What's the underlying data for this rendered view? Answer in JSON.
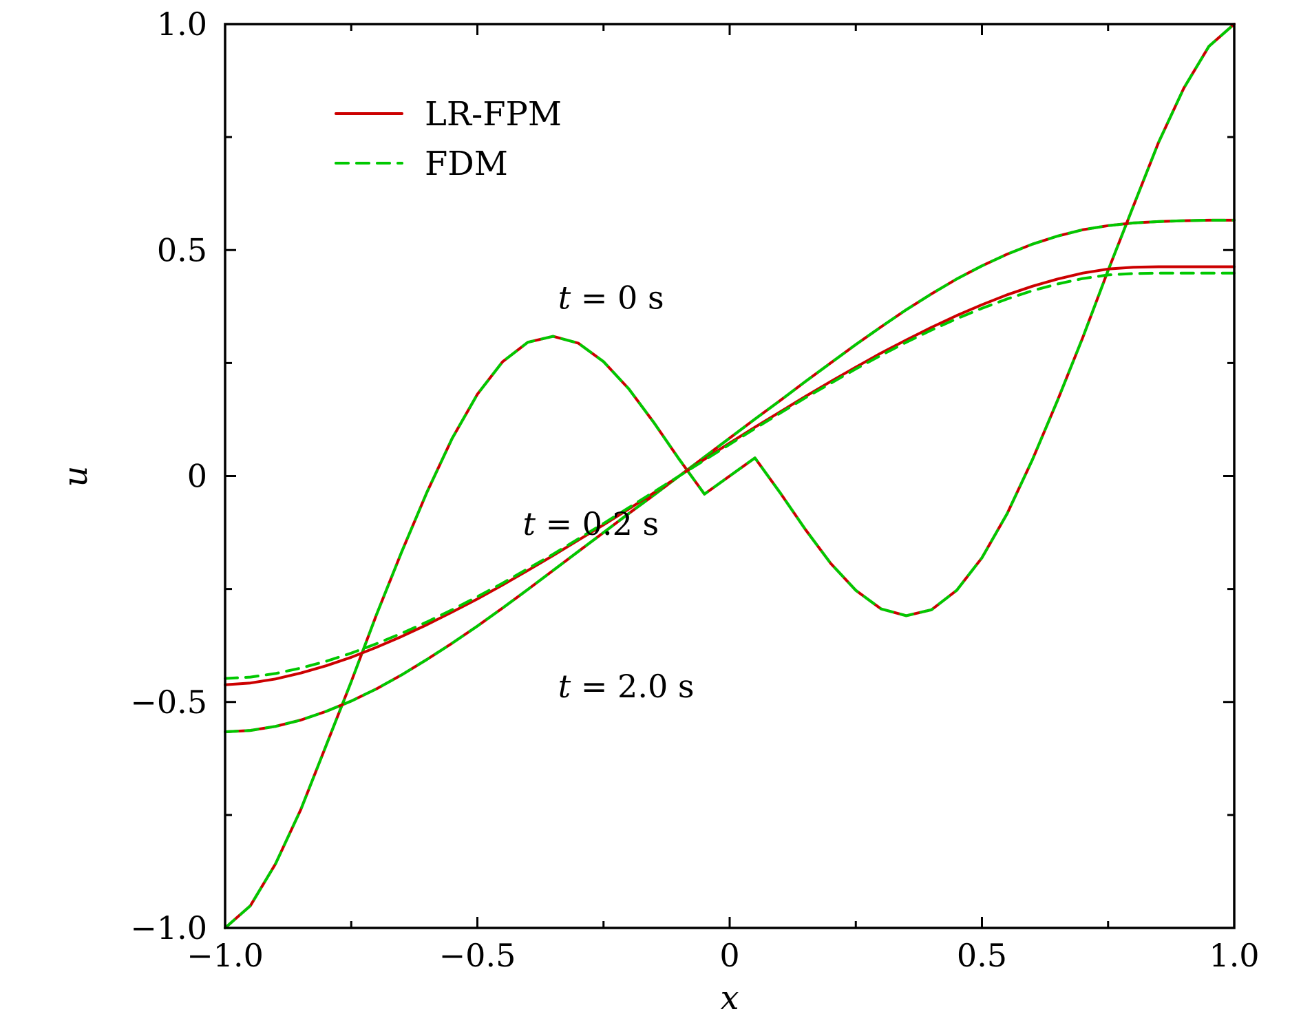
{
  "chart_data": {
    "type": "line",
    "xlabel": "x",
    "ylabel": "u",
    "xlim": [
      -1.0,
      1.0
    ],
    "ylim": [
      -1.0,
      1.0
    ],
    "x_ticks": [
      {
        "value": -1.0,
        "label": "−1.0"
      },
      {
        "value": -0.5,
        "label": "−0.5"
      },
      {
        "value": 0,
        "label": "0"
      },
      {
        "value": 0.5,
        "label": "0.5"
      },
      {
        "value": 1.0,
        "label": "1.0"
      }
    ],
    "x_minor_ticks": [
      -0.75,
      -0.25,
      0.25,
      0.75
    ],
    "y_ticks": [
      {
        "value": -1.0,
        "label": "−1.0"
      },
      {
        "value": -0.5,
        "label": "−0.5"
      },
      {
        "value": 0,
        "label": "0"
      },
      {
        "value": 0.5,
        "label": "0.5"
      },
      {
        "value": 1.0,
        "label": "1.0"
      }
    ],
    "y_minor_ticks": [
      -0.75,
      -0.25,
      0.25,
      0.75
    ],
    "grid": false,
    "legend_position": "top-left",
    "legend": [
      {
        "name": "LR-FPM",
        "color": "#cc0000",
        "dash": "solid"
      },
      {
        "name": "FDM",
        "color": "#00c800",
        "dash": "dashed"
      }
    ],
    "annotations": [
      {
        "text": "t = 0 s",
        "x": -0.34,
        "y": 0.37
      },
      {
        "text": "t = 0.2 s",
        "x": -0.41,
        "y": -0.13
      },
      {
        "text": "t = 2.0 s",
        "x": -0.34,
        "y": -0.49
      }
    ],
    "x": [
      -1.0,
      -0.95,
      -0.9,
      -0.85,
      -0.8,
      -0.75,
      -0.7,
      -0.65,
      -0.6,
      -0.55,
      -0.5,
      -0.45,
      -0.4,
      -0.35,
      -0.3,
      -0.25,
      -0.2,
      -0.15,
      -0.1,
      -0.05,
      0.0,
      0.05,
      0.1,
      0.15,
      0.2,
      0.25,
      0.3,
      0.35,
      0.4,
      0.45,
      0.5,
      0.55,
      0.6,
      0.65,
      0.7,
      0.75,
      0.8,
      0.85,
      0.9,
      0.95,
      1.0
    ],
    "series": [
      {
        "group": "t = 0 s",
        "method": "LR-FPM",
        "color": "#cc0000",
        "dash": "solid",
        "values": [
          -1.0,
          -0.951,
          -0.858,
          -0.738,
          -0.597,
          -0.455,
          -0.307,
          -0.168,
          -0.036,
          0.083,
          0.181,
          0.253,
          0.296,
          0.309,
          0.294,
          0.253,
          0.193,
          0.118,
          0.037,
          -0.04,
          0.0,
          0.04,
          -0.037,
          -0.118,
          -0.193,
          -0.253,
          -0.294,
          -0.309,
          -0.296,
          -0.253,
          -0.181,
          -0.083,
          0.036,
          0.168,
          0.307,
          0.455,
          0.597,
          0.738,
          0.858,
          0.951,
          1.0
        ]
      },
      {
        "group": "t = 0 s",
        "method": "FDM",
        "color": "#00c800",
        "dash": "dashed",
        "values": [
          -1.0,
          -0.951,
          -0.858,
          -0.738,
          -0.597,
          -0.455,
          -0.307,
          -0.168,
          -0.036,
          0.083,
          0.181,
          0.253,
          0.296,
          0.309,
          0.294,
          0.253,
          0.193,
          0.118,
          0.037,
          -0.04,
          0.0,
          0.04,
          -0.037,
          -0.118,
          -0.193,
          -0.253,
          -0.294,
          -0.309,
          -0.296,
          -0.253,
          -0.181,
          -0.083,
          0.036,
          0.168,
          0.307,
          0.455,
          0.597,
          0.738,
          0.858,
          0.951,
          1.0
        ]
      },
      {
        "group": "t = 0.2 s",
        "method": "LR-FPM",
        "color": "#cc0000",
        "dash": "solid",
        "values": [
          -0.566,
          -0.563,
          -0.554,
          -0.54,
          -0.521,
          -0.498,
          -0.471,
          -0.44,
          -0.406,
          -0.37,
          -0.332,
          -0.292,
          -0.251,
          -0.209,
          -0.167,
          -0.125,
          -0.083,
          -0.042,
          0.0,
          0.042,
          0.084,
          0.126,
          0.167,
          0.209,
          0.25,
          0.291,
          0.33,
          0.368,
          0.403,
          0.436,
          0.465,
          0.491,
          0.513,
          0.531,
          0.545,
          0.554,
          0.56,
          0.563,
          0.565,
          0.566,
          0.566
        ]
      },
      {
        "group": "t = 0.2 s",
        "method": "FDM",
        "color": "#00c800",
        "dash": "dashed",
        "values": [
          -0.566,
          -0.563,
          -0.554,
          -0.54,
          -0.521,
          -0.498,
          -0.471,
          -0.44,
          -0.406,
          -0.37,
          -0.332,
          -0.292,
          -0.251,
          -0.209,
          -0.167,
          -0.125,
          -0.083,
          -0.042,
          0.0,
          0.042,
          0.084,
          0.126,
          0.167,
          0.209,
          0.25,
          0.291,
          0.33,
          0.368,
          0.403,
          0.436,
          0.465,
          0.491,
          0.513,
          0.531,
          0.545,
          0.554,
          0.56,
          0.563,
          0.565,
          0.566,
          0.566
        ]
      },
      {
        "group": "t = 2.0 s",
        "method": "LR-FPM",
        "color": "#cc0000",
        "dash": "solid",
        "values": [
          -0.462,
          -0.458,
          -0.449,
          -0.436,
          -0.42,
          -0.401,
          -0.379,
          -0.355,
          -0.329,
          -0.301,
          -0.272,
          -0.241,
          -0.209,
          -0.176,
          -0.142,
          -0.108,
          -0.073,
          -0.037,
          0.0,
          0.037,
          0.073,
          0.108,
          0.142,
          0.176,
          0.209,
          0.241,
          0.272,
          0.301,
          0.329,
          0.355,
          0.379,
          0.401,
          0.42,
          0.436,
          0.449,
          0.458,
          0.462,
          0.463,
          0.463,
          0.463,
          0.463
        ]
      },
      {
        "group": "t = 2.0 s",
        "method": "FDM",
        "color": "#00c800",
        "dash": "dashed",
        "values": [
          -0.448,
          -0.445,
          -0.437,
          -0.425,
          -0.41,
          -0.392,
          -0.371,
          -0.348,
          -0.323,
          -0.296,
          -0.267,
          -0.237,
          -0.205,
          -0.173,
          -0.139,
          -0.105,
          -0.07,
          -0.035,
          0.0,
          0.035,
          0.07,
          0.105,
          0.139,
          0.173,
          0.205,
          0.237,
          0.267,
          0.296,
          0.323,
          0.348,
          0.371,
          0.392,
          0.41,
          0.425,
          0.437,
          0.445,
          0.448,
          0.449,
          0.449,
          0.449,
          0.449
        ]
      }
    ]
  }
}
